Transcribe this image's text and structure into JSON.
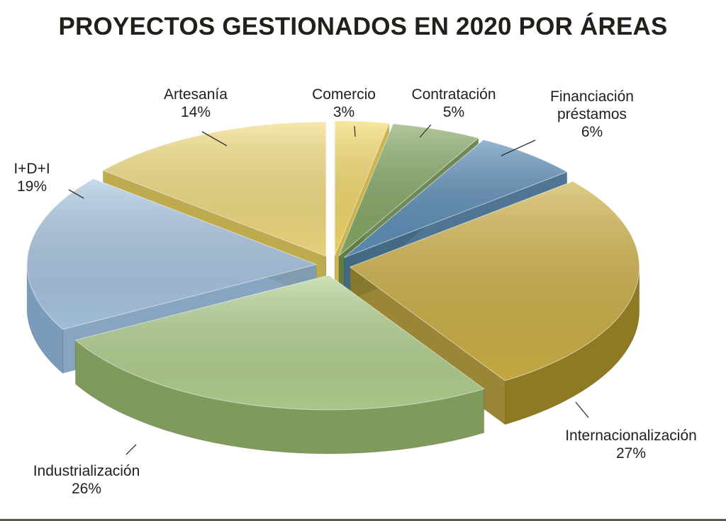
{
  "chart_data": {
    "type": "pie",
    "title": "PROYECTOS GESTIONADOS EN 2020 POR ÁREAS",
    "slices": [
      {
        "label": [
          "Comercio"
        ],
        "value_text": "3%",
        "value": 3,
        "color": "#f3d96a",
        "side": "#c9ac3a"
      },
      {
        "label": [
          "Contratación"
        ],
        "value_text": "5%",
        "value": 5,
        "color": "#86a966",
        "side": "#5f7d44"
      },
      {
        "label": [
          "Financiación",
          "préstamos"
        ],
        "value_text": "6%",
        "value": 6,
        "color": "#5e8fb8",
        "side": "#3e6789"
      },
      {
        "label": [
          "Internacionalización"
        ],
        "value_text": "27%",
        "value": 27,
        "color": "#cdb046",
        "side": "#8e7a22"
      },
      {
        "label": [
          "Industrialización"
        ],
        "value_text": "26%",
        "value": 26,
        "color": "#b2d190",
        "side": "#7f9b5b"
      },
      {
        "label": [
          "I+D+I"
        ],
        "value_text": "19%",
        "value": 19,
        "color": "#a9c6e2",
        "side": "#7b9bbb"
      },
      {
        "label": [
          "Artesanía"
        ],
        "value_text": "14%",
        "value": 14,
        "color": "#f2dc80",
        "side": "#b8a23e"
      }
    ]
  }
}
